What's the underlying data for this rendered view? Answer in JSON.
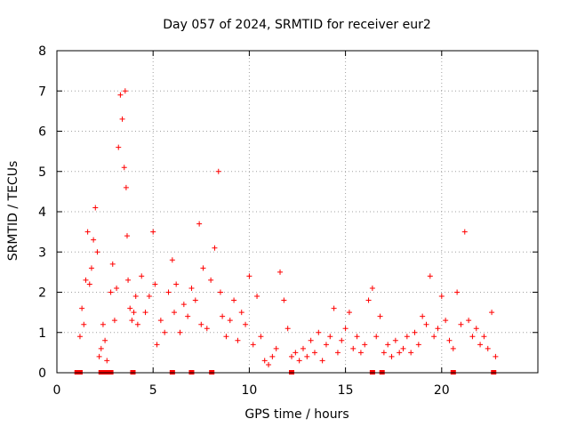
{
  "chart_data": {
    "type": "scatter",
    "title": "Day 057 of 2024, SRMTID for receiver eur2",
    "xlabel": "GPS time / hours",
    "ylabel": "SRMTID / TECUs",
    "xlim": [
      0,
      25
    ],
    "ylim": [
      0,
      8
    ],
    "xticks": [
      0,
      5,
      10,
      15,
      20
    ],
    "yticks": [
      0,
      1,
      2,
      3,
      4,
      5,
      6,
      7,
      8
    ],
    "grid": true,
    "marker": "plus",
    "color": "#ff0000",
    "series": [
      {
        "name": "SRMTID",
        "x": [
          1.2,
          1.3,
          1.4,
          1.5,
          1.6,
          1.7,
          1.8,
          1.9,
          2.0,
          2.1,
          2.2,
          2.3,
          2.4,
          2.5,
          2.6,
          2.8,
          2.9,
          3.0,
          3.1,
          3.2,
          3.3,
          3.4,
          3.5,
          3.55,
          3.6,
          3.65,
          3.7,
          3.8,
          3.9,
          4.0,
          4.1,
          4.2,
          4.4,
          4.6,
          4.8,
          5.0,
          5.1,
          5.2,
          5.4,
          5.6,
          5.8,
          6.0,
          6.1,
          6.2,
          6.4,
          6.6,
          6.8,
          7.0,
          7.2,
          7.4,
          7.5,
          7.6,
          7.8,
          8.0,
          8.2,
          8.4,
          8.5,
          8.6,
          8.8,
          9.0,
          9.2,
          9.4,
          9.6,
          9.8,
          10.0,
          10.2,
          10.4,
          10.6,
          10.8,
          11.0,
          11.2,
          11.4,
          11.6,
          11.8,
          12.0,
          12.2,
          12.4,
          12.6,
          12.8,
          13.0,
          13.2,
          13.4,
          13.6,
          13.8,
          14.0,
          14.2,
          14.4,
          14.6,
          14.8,
          15.0,
          15.2,
          15.4,
          15.6,
          15.8,
          16.0,
          16.2,
          16.4,
          16.6,
          16.8,
          17.0,
          17.2,
          17.4,
          17.6,
          17.8,
          18.0,
          18.2,
          18.4,
          18.6,
          18.8,
          19.0,
          19.2,
          19.4,
          19.6,
          19.8,
          20.0,
          20.2,
          20.4,
          20.6,
          20.8,
          21.0,
          21.2,
          21.4,
          21.6,
          21.8,
          22.0,
          22.2,
          22.4,
          22.6,
          22.8
        ],
        "y": [
          0.9,
          1.6,
          1.2,
          2.3,
          3.5,
          2.2,
          2.6,
          3.3,
          4.1,
          3.0,
          0.4,
          0.6,
          1.2,
          0.8,
          0.3,
          2.0,
          2.7,
          1.3,
          2.1,
          5.6,
          6.9,
          6.3,
          5.1,
          7.0,
          4.6,
          3.4,
          2.3,
          1.6,
          1.3,
          1.5,
          1.9,
          1.2,
          2.4,
          1.5,
          1.9,
          3.5,
          2.2,
          0.7,
          1.3,
          1.0,
          2.0,
          2.8,
          1.5,
          2.2,
          1.0,
          1.7,
          1.4,
          2.1,
          1.8,
          3.7,
          1.2,
          2.6,
          1.1,
          2.3,
          3.1,
          5.0,
          2.0,
          1.4,
          0.9,
          1.3,
          1.8,
          0.8,
          1.5,
          1.2,
          2.4,
          0.7,
          1.9,
          0.9,
          0.3,
          0.2,
          0.4,
          0.6,
          2.5,
          1.8,
          1.1,
          0.4,
          0.5,
          0.3,
          0.6,
          0.4,
          0.8,
          0.5,
          1.0,
          0.3,
          0.7,
          0.9,
          1.6,
          0.5,
          0.8,
          1.1,
          1.5,
          0.6,
          0.9,
          0.5,
          0.7,
          1.8,
          2.1,
          0.9,
          1.4,
          0.5,
          0.7,
          0.4,
          0.8,
          0.5,
          0.6,
          0.9,
          0.5,
          1.0,
          0.7,
          1.4,
          1.2,
          2.4,
          0.9,
          1.1,
          1.9,
          1.3,
          0.8,
          0.6,
          2.0,
          1.2,
          3.5,
          1.3,
          0.9,
          1.1,
          0.7,
          0.9,
          0.6,
          1.5,
          0.4
        ],
        "zero_x": [
          1.05,
          1.15,
          1.2,
          2.3,
          2.4,
          2.5,
          2.7,
          2.8,
          3.95,
          6.0,
          7.0,
          8.05,
          12.2,
          16.4,
          16.9,
          20.6,
          22.7
        ]
      }
    ]
  }
}
